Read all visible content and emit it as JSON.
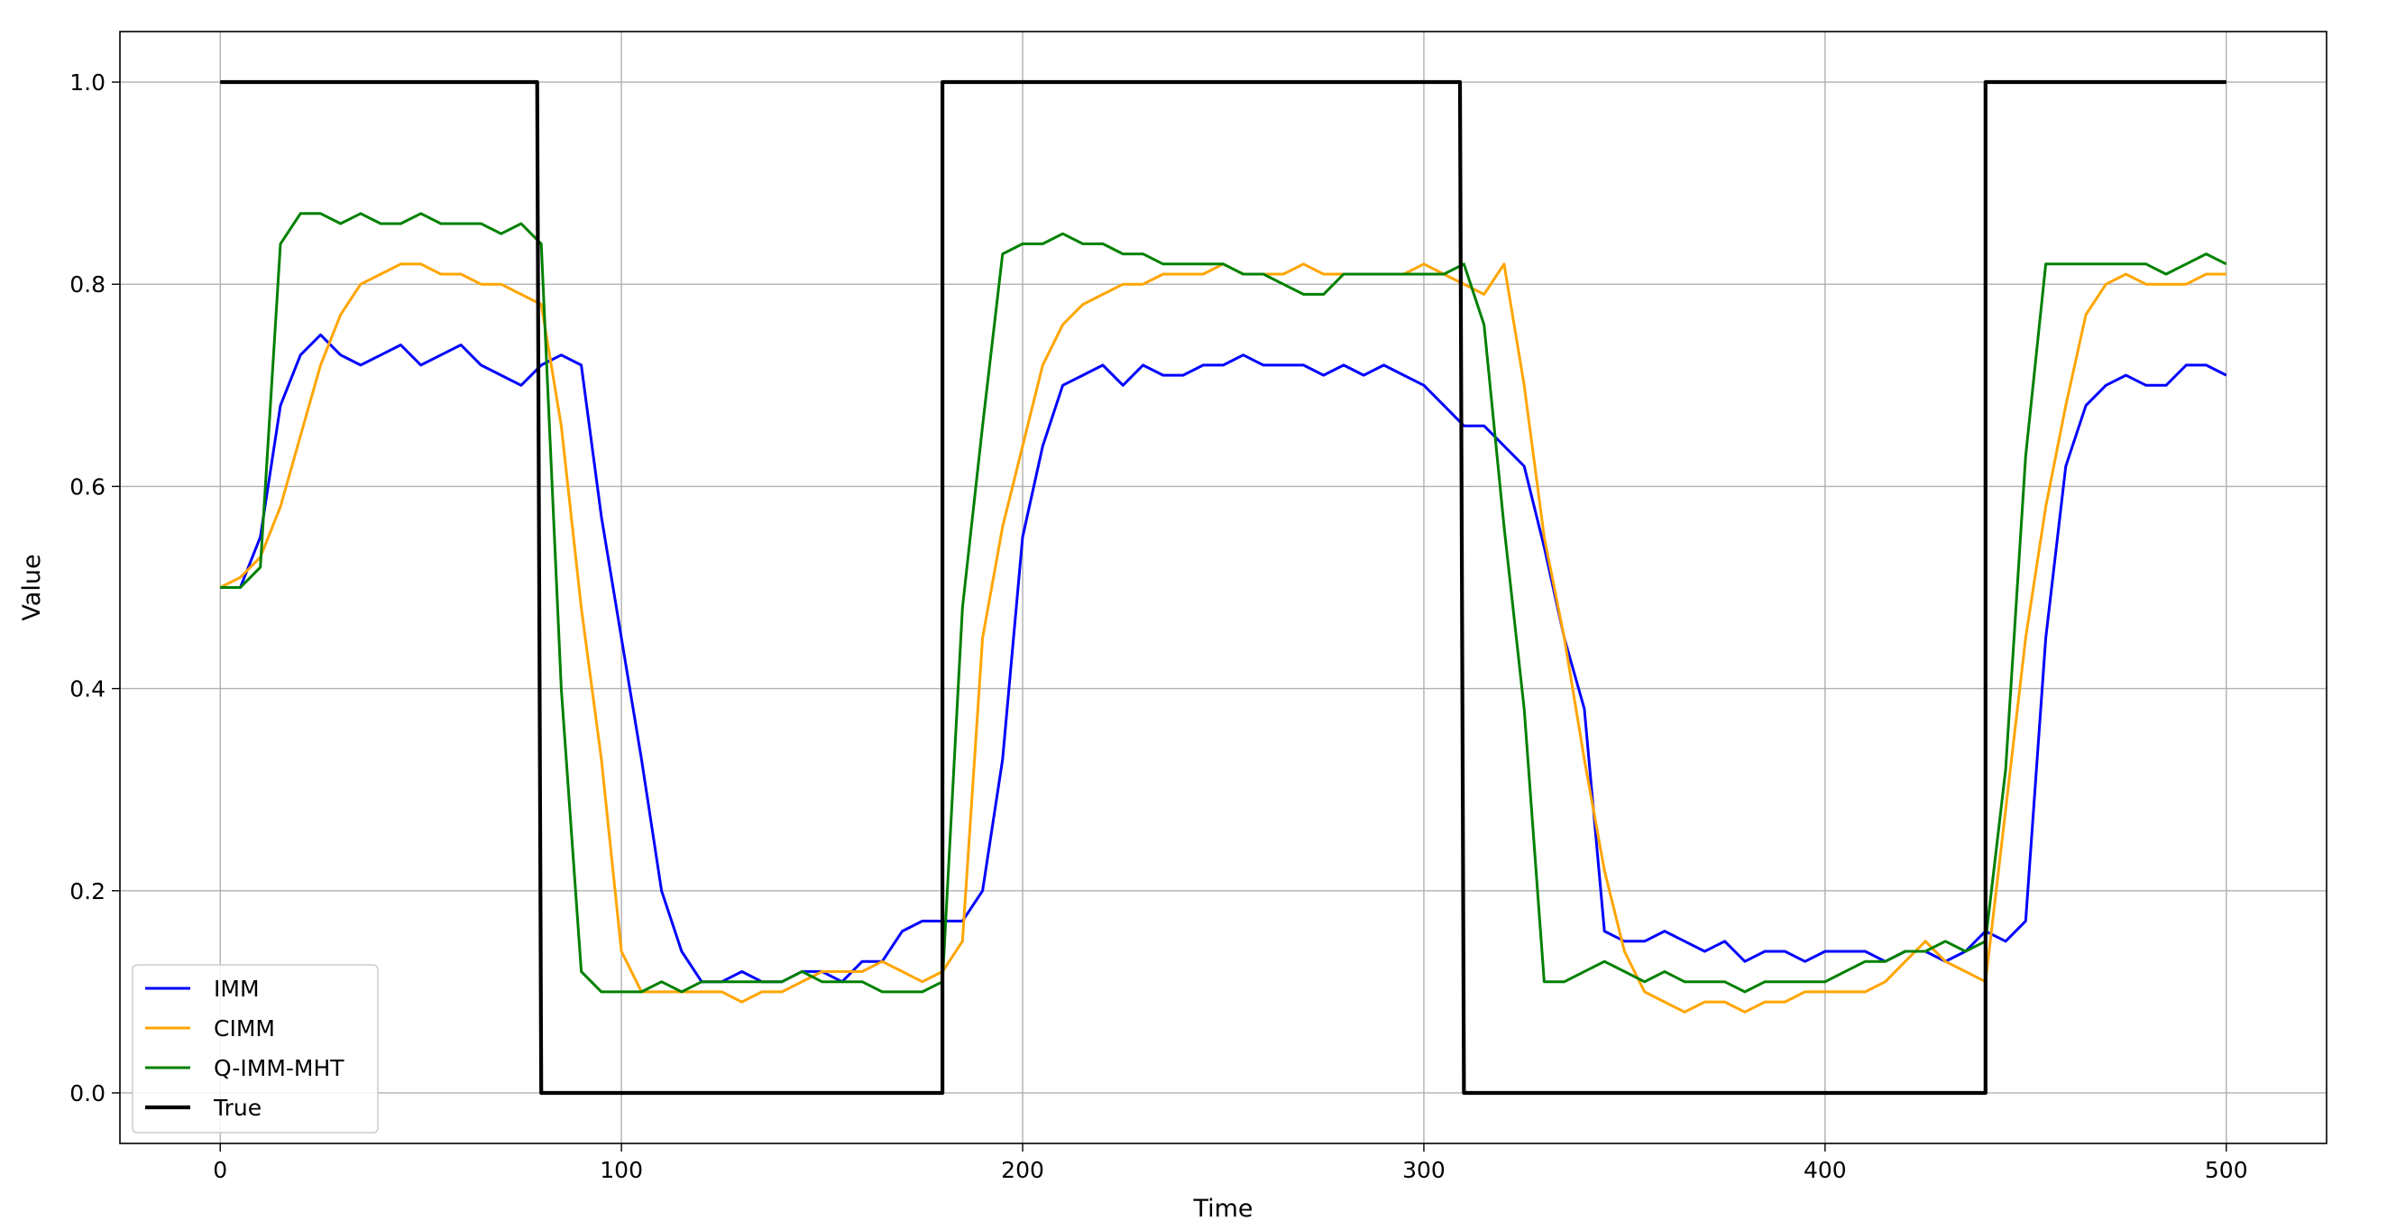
{
  "chart_data": {
    "type": "line",
    "xlabel": "Time",
    "ylabel": "Value",
    "xlim": [
      -25,
      525
    ],
    "ylim": [
      -0.05,
      1.05
    ],
    "xticks": [
      0,
      100,
      200,
      300,
      400,
      500
    ],
    "yticks": [
      0.0,
      0.2,
      0.4,
      0.6,
      0.8,
      1.0
    ],
    "xtick_labels": [
      "0",
      "100",
      "200",
      "300",
      "400",
      "500"
    ],
    "ytick_labels": [
      "0.0",
      "0.2",
      "0.4",
      "0.6",
      "0.8",
      "1.0"
    ],
    "grid": true,
    "legend_position": "lower-left",
    "series": [
      {
        "name": "IMM",
        "color": "#0000ff",
        "x": [
          0,
          5,
          10,
          15,
          20,
          25,
          30,
          35,
          40,
          45,
          50,
          55,
          60,
          65,
          70,
          75,
          80,
          85,
          90,
          95,
          100,
          105,
          110,
          115,
          120,
          125,
          130,
          135,
          140,
          145,
          150,
          155,
          160,
          165,
          170,
          175,
          180,
          185,
          190,
          195,
          200,
          205,
          210,
          215,
          220,
          225,
          230,
          235,
          240,
          245,
          250,
          255,
          260,
          265,
          270,
          275,
          280,
          285,
          290,
          295,
          300,
          305,
          310,
          315,
          320,
          325,
          330,
          335,
          340,
          345,
          350,
          355,
          360,
          365,
          370,
          375,
          380,
          385,
          390,
          395,
          400,
          405,
          410,
          415,
          420,
          425,
          430,
          435,
          440,
          445,
          450,
          455,
          460,
          465,
          470,
          475,
          480,
          485,
          490,
          495,
          500
        ],
        "y": [
          0.5,
          0.5,
          0.55,
          0.68,
          0.73,
          0.75,
          0.73,
          0.72,
          0.73,
          0.74,
          0.72,
          0.73,
          0.74,
          0.72,
          0.71,
          0.7,
          0.72,
          0.73,
          0.72,
          0.57,
          0.45,
          0.33,
          0.2,
          0.14,
          0.11,
          0.11,
          0.12,
          0.11,
          0.11,
          0.12,
          0.12,
          0.11,
          0.13,
          0.13,
          0.16,
          0.17,
          0.17,
          0.17,
          0.2,
          0.33,
          0.55,
          0.64,
          0.7,
          0.71,
          0.72,
          0.7,
          0.72,
          0.71,
          0.71,
          0.72,
          0.72,
          0.73,
          0.72,
          0.72,
          0.72,
          0.71,
          0.72,
          0.71,
          0.72,
          0.71,
          0.7,
          0.68,
          0.66,
          0.66,
          0.64,
          0.62,
          0.54,
          0.45,
          0.38,
          0.16,
          0.15,
          0.15,
          0.16,
          0.15,
          0.14,
          0.15,
          0.13,
          0.14,
          0.14,
          0.13,
          0.14,
          0.14,
          0.14,
          0.13,
          0.14,
          0.14,
          0.13,
          0.14,
          0.16,
          0.15,
          0.17,
          0.45,
          0.62,
          0.68,
          0.7,
          0.71,
          0.7,
          0.7,
          0.72,
          0.72,
          0.71
        ]
      },
      {
        "name": "CIMM",
        "color": "#ffa500",
        "x": [
          0,
          5,
          10,
          15,
          20,
          25,
          30,
          35,
          40,
          45,
          50,
          55,
          60,
          65,
          70,
          75,
          80,
          85,
          90,
          95,
          100,
          105,
          110,
          115,
          120,
          125,
          130,
          135,
          140,
          145,
          150,
          155,
          160,
          165,
          170,
          175,
          180,
          185,
          190,
          195,
          200,
          205,
          210,
          215,
          220,
          225,
          230,
          235,
          240,
          245,
          250,
          255,
          260,
          265,
          270,
          275,
          280,
          285,
          290,
          295,
          300,
          305,
          310,
          315,
          320,
          325,
          330,
          335,
          340,
          345,
          350,
          355,
          360,
          365,
          370,
          375,
          380,
          385,
          390,
          395,
          400,
          405,
          410,
          415,
          420,
          425,
          430,
          435,
          440,
          445,
          450,
          455,
          460,
          465,
          470,
          475,
          480,
          485,
          490,
          495,
          500
        ],
        "y": [
          0.5,
          0.51,
          0.53,
          0.58,
          0.65,
          0.72,
          0.77,
          0.8,
          0.81,
          0.82,
          0.82,
          0.81,
          0.81,
          0.8,
          0.8,
          0.79,
          0.78,
          0.66,
          0.48,
          0.33,
          0.14,
          0.1,
          0.1,
          0.1,
          0.1,
          0.1,
          0.09,
          0.1,
          0.1,
          0.11,
          0.12,
          0.12,
          0.12,
          0.13,
          0.12,
          0.11,
          0.12,
          0.15,
          0.45,
          0.56,
          0.64,
          0.72,
          0.76,
          0.78,
          0.79,
          0.8,
          0.8,
          0.81,
          0.81,
          0.81,
          0.82,
          0.81,
          0.81,
          0.81,
          0.82,
          0.81,
          0.81,
          0.81,
          0.81,
          0.81,
          0.82,
          0.81,
          0.8,
          0.79,
          0.82,
          0.7,
          0.55,
          0.45,
          0.33,
          0.22,
          0.14,
          0.1,
          0.09,
          0.08,
          0.09,
          0.09,
          0.08,
          0.09,
          0.09,
          0.1,
          0.1,
          0.1,
          0.1,
          0.11,
          0.13,
          0.15,
          0.13,
          0.12,
          0.11,
          0.28,
          0.45,
          0.58,
          0.68,
          0.77,
          0.8,
          0.81,
          0.8,
          0.8,
          0.8,
          0.81,
          0.81
        ]
      },
      {
        "name": "Q-IMM-MHT",
        "color": "#008000",
        "x": [
          0,
          5,
          10,
          15,
          20,
          25,
          30,
          35,
          40,
          45,
          50,
          55,
          60,
          65,
          70,
          75,
          80,
          85,
          90,
          95,
          100,
          105,
          110,
          115,
          120,
          125,
          130,
          135,
          140,
          145,
          150,
          155,
          160,
          165,
          170,
          175,
          180,
          185,
          190,
          195,
          200,
          205,
          210,
          215,
          220,
          225,
          230,
          235,
          240,
          245,
          250,
          255,
          260,
          265,
          270,
          275,
          280,
          285,
          290,
          295,
          300,
          305,
          310,
          315,
          320,
          325,
          330,
          335,
          340,
          345,
          350,
          355,
          360,
          365,
          370,
          375,
          380,
          385,
          390,
          395,
          400,
          405,
          410,
          415,
          420,
          425,
          430,
          435,
          440,
          445,
          450,
          455,
          460,
          465,
          470,
          475,
          480,
          485,
          490,
          495,
          500
        ],
        "y": [
          0.5,
          0.5,
          0.52,
          0.84,
          0.87,
          0.87,
          0.86,
          0.87,
          0.86,
          0.86,
          0.87,
          0.86,
          0.86,
          0.86,
          0.85,
          0.86,
          0.84,
          0.4,
          0.12,
          0.1,
          0.1,
          0.1,
          0.11,
          0.1,
          0.11,
          0.11,
          0.11,
          0.11,
          0.11,
          0.12,
          0.11,
          0.11,
          0.11,
          0.1,
          0.1,
          0.1,
          0.11,
          0.48,
          0.66,
          0.83,
          0.84,
          0.84,
          0.85,
          0.84,
          0.84,
          0.83,
          0.83,
          0.82,
          0.82,
          0.82,
          0.82,
          0.81,
          0.81,
          0.8,
          0.79,
          0.79,
          0.81,
          0.81,
          0.81,
          0.81,
          0.81,
          0.81,
          0.82,
          0.76,
          0.56,
          0.38,
          0.11,
          0.11,
          0.12,
          0.13,
          0.12,
          0.11,
          0.12,
          0.11,
          0.11,
          0.11,
          0.1,
          0.11,
          0.11,
          0.11,
          0.11,
          0.12,
          0.13,
          0.13,
          0.14,
          0.14,
          0.15,
          0.14,
          0.15,
          0.32,
          0.63,
          0.82,
          0.82,
          0.82,
          0.82,
          0.82,
          0.82,
          0.81,
          0.82,
          0.83,
          0.82
        ]
      },
      {
        "name": "True",
        "color": "#000000",
        "x": [
          0,
          79,
          80,
          180,
          180,
          309,
          310,
          440,
          440,
          500
        ],
        "y": [
          1,
          1,
          0,
          0,
          1,
          1,
          0,
          0,
          1,
          1
        ]
      }
    ]
  }
}
